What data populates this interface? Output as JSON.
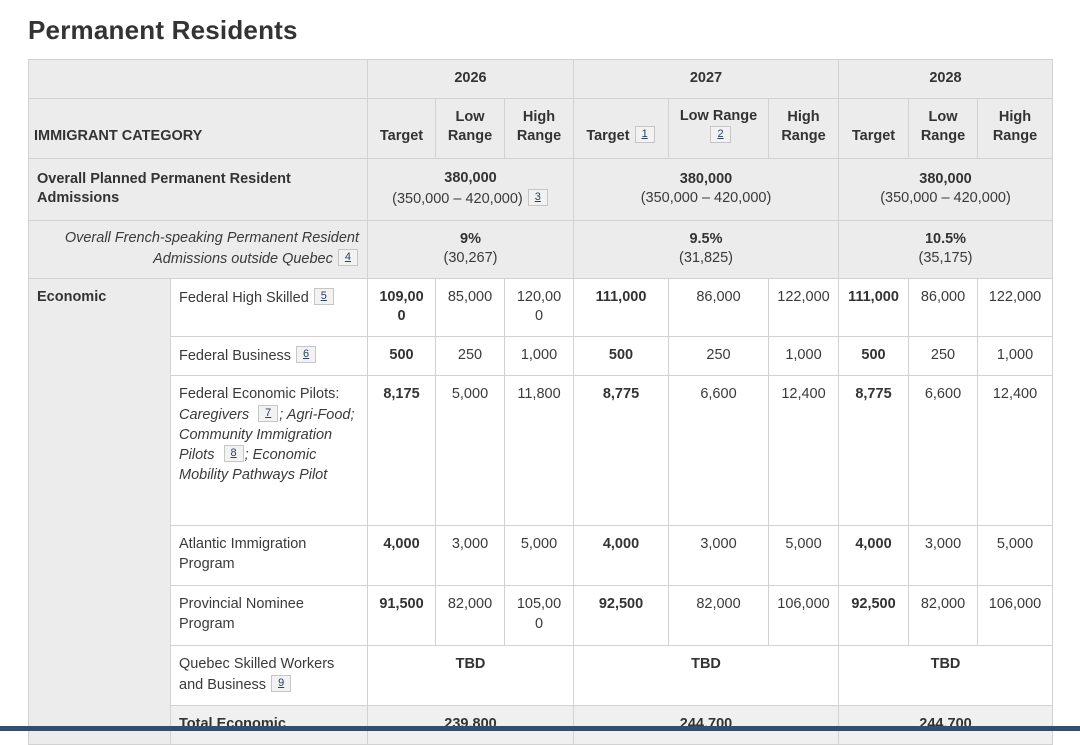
{
  "page": {
    "title": "Permanent Residents"
  },
  "colors": {
    "footnote_link": "#284162",
    "bottom_bar": "#31506e",
    "header_background": "#ececec"
  },
  "table": {
    "category_header": "IMMIGRANT CATEGORY",
    "year_groups": [
      {
        "year": "2026",
        "cols": [
          {
            "label": "Target"
          },
          {
            "label": "Low Range"
          },
          {
            "label": "High Range"
          }
        ]
      },
      {
        "year": "2027",
        "cols": [
          {
            "label": "Target",
            "footnote": "1"
          },
          {
            "label": "Low Range",
            "footnote": "2"
          },
          {
            "label": "High Range"
          }
        ]
      },
      {
        "year": "2028",
        "cols": [
          {
            "label": "Target"
          },
          {
            "label": "Low Range"
          },
          {
            "label": "High Range"
          }
        ]
      }
    ],
    "rows": [
      {
        "name": "overall-admissions",
        "shade": true,
        "cells": [
          {
            "name": "row-label",
            "colspan": 2,
            "align": "left",
            "lines": [
              [
                {
                  "text": "Overall Planned Permanent Resident Admissions",
                  "bold": true
                }
              ]
            ]
          },
          {
            "name": "value-2026",
            "colspan": 3,
            "lines": [
              [
                {
                  "text": "380,000",
                  "bold": true
                }
              ],
              [
                {
                  "text": "(350,000 – 420,000)"
                },
                {
                  "footnote": "3"
                }
              ]
            ]
          },
          {
            "name": "value-2027",
            "colspan": 3,
            "lines": [
              [
                {
                  "text": "380,000",
                  "bold": true
                }
              ],
              [
                {
                  "text": "(350,000 – 420,000)"
                }
              ]
            ]
          },
          {
            "name": "value-2028",
            "colspan": 3,
            "lines": [
              [
                {
                  "text": "380,000",
                  "bold": true
                }
              ],
              [
                {
                  "text": "(350,000 – 420,000)"
                }
              ]
            ]
          }
        ]
      },
      {
        "name": "french-speaking",
        "shade": true,
        "cells": [
          {
            "name": "row-label",
            "colspan": 2,
            "align": "right",
            "lines": [
              [
                {
                  "text": "Overall French-speaking Permanent Resident Admissions outside Quebec",
                  "italic": true
                },
                {
                  "footnote": "4"
                }
              ]
            ]
          },
          {
            "name": "value-2026",
            "colspan": 3,
            "lines": [
              [
                {
                  "text": "9%",
                  "bold": true
                }
              ],
              [
                {
                  "text": "(30,267)"
                }
              ]
            ]
          },
          {
            "name": "value-2027",
            "colspan": 3,
            "lines": [
              [
                {
                  "text": "9.5%",
                  "bold": true
                }
              ],
              [
                {
                  "text": "(31,825)"
                }
              ]
            ]
          },
          {
            "name": "value-2028",
            "colspan": 3,
            "lines": [
              [
                {
                  "text": "10.5%",
                  "bold": true
                }
              ],
              [
                {
                  "text": "(35,175)"
                }
              ]
            ]
          }
        ]
      },
      {
        "name": "federal-high-skilled",
        "section": "economic",
        "cells": [
          {
            "name": "group-label-economic",
            "rowspan": 7,
            "shade": true,
            "align": "left",
            "valign": "top",
            "lines": [
              [
                {
                  "text": "Economic",
                  "bold": true
                }
              ]
            ]
          },
          {
            "name": "row-label",
            "align": "left",
            "lines": [
              [
                {
                  "text": "Federal High Skilled"
                },
                {
                  "footnote": "5"
                }
              ]
            ]
          },
          {
            "lines": [
              [
                {
                  "text": "109,000",
                  "bold": true
                }
              ]
            ]
          },
          {
            "lines": [
              [
                {
                  "text": "85,000"
                }
              ]
            ]
          },
          {
            "lines": [
              [
                {
                  "text": "120,000"
                }
              ]
            ]
          },
          {
            "lines": [
              [
                {
                  "text": "111,000",
                  "bold": true
                }
              ]
            ]
          },
          {
            "lines": [
              [
                {
                  "text": "86,000"
                }
              ]
            ]
          },
          {
            "lines": [
              [
                {
                  "text": "122,000"
                }
              ]
            ]
          },
          {
            "lines": [
              [
                {
                  "text": "111,000",
                  "bold": true
                }
              ]
            ]
          },
          {
            "lines": [
              [
                {
                  "text": "86,000"
                }
              ]
            ]
          },
          {
            "lines": [
              [
                {
                  "text": "122,000"
                }
              ]
            ]
          }
        ]
      },
      {
        "name": "federal-business",
        "section": "economic",
        "cells": [
          {
            "name": "row-label",
            "align": "left",
            "lines": [
              [
                {
                  "text": "Federal Business"
                },
                {
                  "footnote": "6"
                }
              ]
            ]
          },
          {
            "lines": [
              [
                {
                  "text": "500",
                  "bold": true
                }
              ]
            ]
          },
          {
            "lines": [
              [
                {
                  "text": "250"
                }
              ]
            ]
          },
          {
            "lines": [
              [
                {
                  "text": "1,000"
                }
              ]
            ]
          },
          {
            "lines": [
              [
                {
                  "text": "500",
                  "bold": true
                }
              ]
            ]
          },
          {
            "lines": [
              [
                {
                  "text": "250"
                }
              ]
            ]
          },
          {
            "lines": [
              [
                {
                  "text": "1,000"
                }
              ]
            ]
          },
          {
            "lines": [
              [
                {
                  "text": "500",
                  "bold": true
                }
              ]
            ]
          },
          {
            "lines": [
              [
                {
                  "text": "250"
                }
              ]
            ]
          },
          {
            "lines": [
              [
                {
                  "text": "1,000"
                }
              ]
            ]
          }
        ]
      },
      {
        "name": "federal-economic-pilots",
        "section": "economic",
        "cells": [
          {
            "name": "row-label",
            "align": "left",
            "lines": [
              [
                {
                  "text": "Federal Economic Pilots: "
                },
                {
                  "text": "Caregivers ",
                  "italic": true
                },
                {
                  "footnote": "7"
                },
                {
                  "text": "; Agri-Food; Community Immigration Pilots ",
                  "italic": true
                },
                {
                  "footnote": "8"
                },
                {
                  "text": "; Economic Mobility Pathways Pilot",
                  "italic": true
                }
              ]
            ]
          },
          {
            "lines": [
              [
                {
                  "text": "8,175",
                  "bold": true
                }
              ]
            ]
          },
          {
            "lines": [
              [
                {
                  "text": "5,000"
                }
              ]
            ]
          },
          {
            "lines": [
              [
                {
                  "text": "11,800"
                }
              ]
            ]
          },
          {
            "lines": [
              [
                {
                  "text": "8,775",
                  "bold": true
                }
              ]
            ]
          },
          {
            "lines": [
              [
                {
                  "text": "6,600"
                }
              ]
            ]
          },
          {
            "lines": [
              [
                {
                  "text": "12,400"
                }
              ]
            ]
          },
          {
            "lines": [
              [
                {
                  "text": "8,775",
                  "bold": true
                }
              ]
            ]
          },
          {
            "lines": [
              [
                {
                  "text": "6,600"
                }
              ]
            ]
          },
          {
            "lines": [
              [
                {
                  "text": "12,400"
                }
              ]
            ]
          }
        ]
      },
      {
        "name": "atlantic-immigration-program",
        "section": "economic",
        "cells": [
          {
            "name": "row-label",
            "align": "left",
            "lines": [
              [
                {
                  "text": "Atlantic Immigration Program"
                }
              ]
            ]
          },
          {
            "lines": [
              [
                {
                  "text": "4,000",
                  "bold": true
                }
              ]
            ]
          },
          {
            "lines": [
              [
                {
                  "text": "3,000"
                }
              ]
            ]
          },
          {
            "lines": [
              [
                {
                  "text": "5,000"
                }
              ]
            ]
          },
          {
            "lines": [
              [
                {
                  "text": "4,000",
                  "bold": true
                }
              ]
            ]
          },
          {
            "lines": [
              [
                {
                  "text": "3,000"
                }
              ]
            ]
          },
          {
            "lines": [
              [
                {
                  "text": "5,000"
                }
              ]
            ]
          },
          {
            "lines": [
              [
                {
                  "text": "4,000",
                  "bold": true
                }
              ]
            ]
          },
          {
            "lines": [
              [
                {
                  "text": "3,000"
                }
              ]
            ]
          },
          {
            "lines": [
              [
                {
                  "text": "5,000"
                }
              ]
            ]
          }
        ]
      },
      {
        "name": "provincial-nominee-program",
        "section": "economic",
        "cells": [
          {
            "name": "row-label",
            "align": "left",
            "lines": [
              [
                {
                  "text": "Provincial Nominee Program"
                }
              ]
            ]
          },
          {
            "lines": [
              [
                {
                  "text": "91,500",
                  "bold": true
                }
              ]
            ]
          },
          {
            "lines": [
              [
                {
                  "text": "82,000"
                }
              ]
            ]
          },
          {
            "lines": [
              [
                {
                  "text": "105,000"
                }
              ]
            ]
          },
          {
            "lines": [
              [
                {
                  "text": "92,500",
                  "bold": true
                }
              ]
            ]
          },
          {
            "lines": [
              [
                {
                  "text": "82,000"
                }
              ]
            ]
          },
          {
            "lines": [
              [
                {
                  "text": "106,000"
                }
              ]
            ]
          },
          {
            "lines": [
              [
                {
                  "text": "92,500",
                  "bold": true
                }
              ]
            ]
          },
          {
            "lines": [
              [
                {
                  "text": "82,000"
                }
              ]
            ]
          },
          {
            "lines": [
              [
                {
                  "text": "106,000"
                }
              ]
            ]
          }
        ]
      },
      {
        "name": "quebec-skilled-workers",
        "section": "economic",
        "cells": [
          {
            "name": "row-label",
            "align": "left",
            "lines": [
              [
                {
                  "text": "Quebec Skilled Workers and Business"
                },
                {
                  "footnote": "9"
                }
              ]
            ]
          },
          {
            "name": "value-2026",
            "colspan": 3,
            "lines": [
              [
                {
                  "text": "TBD",
                  "bold": true
                }
              ]
            ]
          },
          {
            "name": "value-2027",
            "colspan": 3,
            "lines": [
              [
                {
                  "text": "TBD",
                  "bold": true
                }
              ]
            ]
          },
          {
            "name": "value-2028",
            "colspan": 3,
            "lines": [
              [
                {
                  "text": "TBD",
                  "bold": true
                }
              ]
            ]
          }
        ]
      },
      {
        "name": "total-economic",
        "section": "economic",
        "total": true,
        "cells": [
          {
            "name": "row-label",
            "align": "left",
            "lines": [
              [
                {
                  "text": "Total Economic",
                  "bold": true
                }
              ]
            ]
          },
          {
            "name": "value-2026",
            "colspan": 3,
            "lines": [
              [
                {
                  "text": "239,800",
                  "bold": true
                }
              ]
            ]
          },
          {
            "name": "value-2027",
            "colspan": 3,
            "lines": [
              [
                {
                  "text": "244,700",
                  "bold": true
                }
              ]
            ]
          },
          {
            "name": "value-2028",
            "colspan": 3,
            "lines": [
              [
                {
                  "text": "244,700",
                  "bold": true
                }
              ]
            ]
          }
        ]
      }
    ]
  }
}
